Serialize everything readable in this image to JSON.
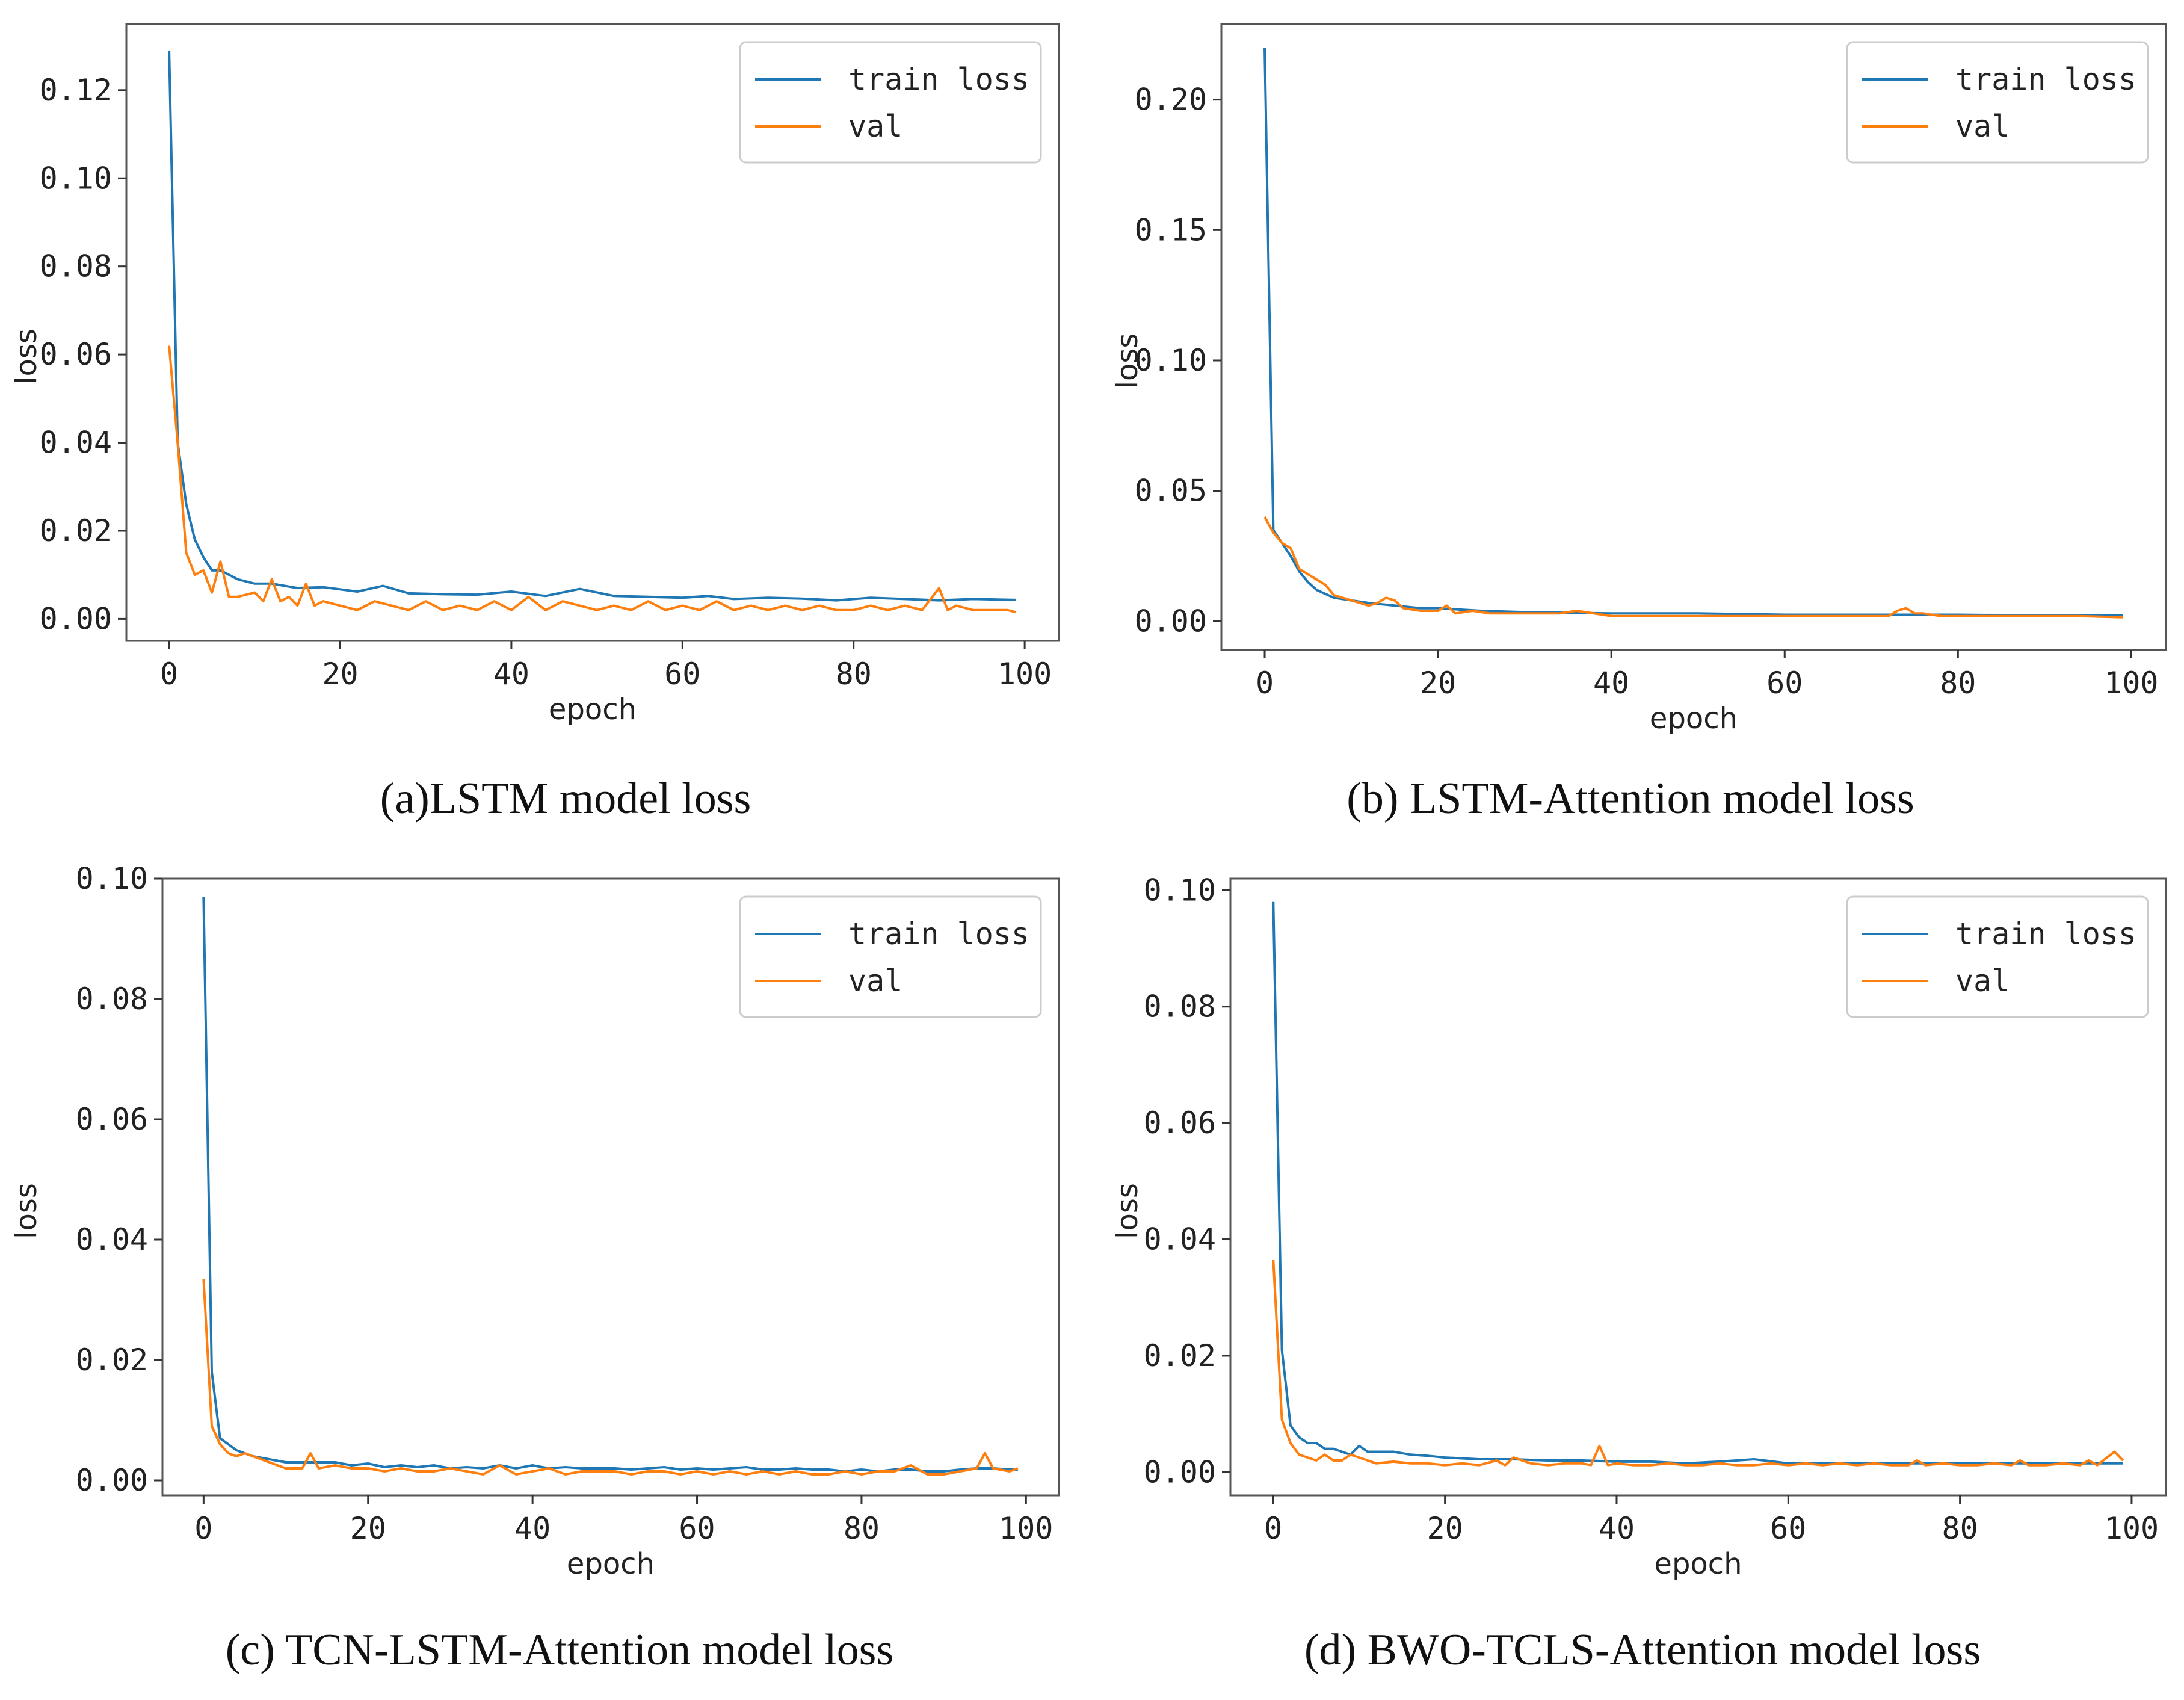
{
  "figure": {
    "colors": {
      "train": "#1f77b4",
      "val": "#ff7f0e",
      "frame": "#555555",
      "text": "#222222"
    }
  },
  "chart_data": [
    {
      "type": "line",
      "caption": "(a)LSTM model loss",
      "xlabel": "epoch",
      "ylabel": "loss",
      "xlim": [
        -5,
        104
      ],
      "ylim": [
        -0.005,
        0.135
      ],
      "xticks": [
        0,
        20,
        40,
        60,
        80,
        100
      ],
      "yticks": [
        0.0,
        0.02,
        0.04,
        0.06,
        0.08,
        0.1,
        0.12
      ],
      "ytick_labels": [
        "0.00",
        "0.02",
        "0.04",
        "0.06",
        "0.08",
        "0.10",
        "0.12"
      ],
      "legend": [
        "train loss",
        "val"
      ],
      "legend_position": "top-right",
      "series": [
        {
          "name": "train loss",
          "x": [
            0,
            1,
            2,
            3,
            4,
            5,
            6,
            8,
            10,
            12,
            15,
            18,
            22,
            25,
            28,
            32,
            36,
            40,
            44,
            48,
            52,
            56,
            60,
            63,
            66,
            70,
            74,
            78,
            82,
            86,
            90,
            94,
            99
          ],
          "y": [
            0.129,
            0.04,
            0.026,
            0.018,
            0.014,
            0.011,
            0.011,
            0.009,
            0.008,
            0.008,
            0.007,
            0.0072,
            0.0062,
            0.0075,
            0.0058,
            0.0056,
            0.0055,
            0.0062,
            0.0052,
            0.0068,
            0.0052,
            0.005,
            0.0048,
            0.0052,
            0.0045,
            0.0048,
            0.0046,
            0.0042,
            0.0048,
            0.0045,
            0.0042,
            0.0045,
            0.0043
          ]
        },
        {
          "name": "val",
          "x": [
            0,
            1,
            2,
            3,
            4,
            5,
            6,
            7,
            8,
            10,
            11,
            12,
            13,
            14,
            15,
            16,
            17,
            18,
            20,
            22,
            24,
            26,
            28,
            30,
            32,
            34,
            36,
            38,
            40,
            42,
            44,
            46,
            48,
            50,
            52,
            54,
            56,
            58,
            60,
            62,
            64,
            66,
            68,
            70,
            72,
            74,
            76,
            78,
            80,
            82,
            84,
            86,
            88,
            90,
            91,
            92,
            94,
            96,
            98,
            99
          ],
          "y": [
            0.062,
            0.04,
            0.015,
            0.01,
            0.011,
            0.006,
            0.013,
            0.005,
            0.005,
            0.006,
            0.004,
            0.009,
            0.004,
            0.005,
            0.003,
            0.008,
            0.003,
            0.004,
            0.003,
            0.002,
            0.004,
            0.003,
            0.002,
            0.004,
            0.002,
            0.003,
            0.002,
            0.004,
            0.002,
            0.005,
            0.002,
            0.004,
            0.003,
            0.002,
            0.003,
            0.002,
            0.004,
            0.002,
            0.003,
            0.002,
            0.004,
            0.002,
            0.003,
            0.002,
            0.003,
            0.002,
            0.003,
            0.002,
            0.002,
            0.003,
            0.002,
            0.003,
            0.002,
            0.007,
            0.002,
            0.003,
            0.002,
            0.002,
            0.002,
            0.0015
          ]
        }
      ]
    },
    {
      "type": "line",
      "caption": "(b) LSTM-Attention model loss",
      "xlabel": "epoch",
      "ylabel": "loss",
      "xlim": [
        -5,
        104
      ],
      "ylim": [
        -0.011,
        0.229
      ],
      "xticks": [
        0,
        20,
        40,
        60,
        80,
        100
      ],
      "yticks": [
        0.0,
        0.05,
        0.1,
        0.15,
        0.2
      ],
      "ytick_labels": [
        "0.00",
        "0.05",
        "0.10",
        "0.15",
        "0.20"
      ],
      "legend": [
        "train loss",
        "val"
      ],
      "legend_position": "top-right",
      "series": [
        {
          "name": "train loss",
          "x": [
            0,
            1,
            2,
            3,
            4,
            5,
            6,
            8,
            10,
            12,
            15,
            18,
            20,
            25,
            30,
            40,
            50,
            60,
            70,
            80,
            90,
            99
          ],
          "y": [
            0.22,
            0.035,
            0.03,
            0.025,
            0.019,
            0.015,
            0.012,
            0.009,
            0.008,
            0.007,
            0.006,
            0.005,
            0.005,
            0.004,
            0.0035,
            0.003,
            0.003,
            0.0025,
            0.0025,
            0.0025,
            0.0022,
            0.0022
          ]
        },
        {
          "name": "val",
          "x": [
            0,
            1,
            2,
            3,
            4,
            5,
            6,
            7,
            8,
            10,
            12,
            13,
            14,
            15,
            16,
            18,
            20,
            21,
            22,
            24,
            26,
            30,
            34,
            36,
            40,
            44,
            48,
            50,
            54,
            58,
            62,
            66,
            70,
            72,
            73,
            74,
            75,
            76,
            78,
            82,
            86,
            90,
            94,
            99
          ],
          "y": [
            0.04,
            0.034,
            0.03,
            0.028,
            0.02,
            0.018,
            0.016,
            0.014,
            0.01,
            0.008,
            0.006,
            0.007,
            0.009,
            0.008,
            0.005,
            0.004,
            0.004,
            0.006,
            0.003,
            0.004,
            0.003,
            0.003,
            0.003,
            0.004,
            0.002,
            0.002,
            0.002,
            0.002,
            0.002,
            0.002,
            0.002,
            0.002,
            0.002,
            0.002,
            0.004,
            0.005,
            0.003,
            0.003,
            0.002,
            0.002,
            0.002,
            0.002,
            0.002,
            0.0015
          ]
        }
      ]
    },
    {
      "type": "line",
      "caption": "(c) TCN-LSTM-Attention model loss",
      "xlabel": "epoch",
      "ylabel": "loss",
      "xlim": [
        -5,
        104
      ],
      "ylim": [
        -0.0025,
        0.1
      ],
      "xticks": [
        0,
        20,
        40,
        60,
        80,
        100
      ],
      "yticks": [
        0.0,
        0.02,
        0.04,
        0.06,
        0.08,
        0.1
      ],
      "ytick_labels": [
        "0.00",
        "0.02",
        "0.04",
        "0.06",
        "0.08",
        "0.10"
      ],
      "legend": [
        "train loss",
        "val"
      ],
      "legend_position": "top-right",
      "series": [
        {
          "name": "train loss",
          "x": [
            0,
            1,
            2,
            3,
            4,
            5,
            6,
            8,
            10,
            12,
            14,
            16,
            18,
            20,
            22,
            24,
            26,
            28,
            30,
            32,
            34,
            36,
            38,
            40,
            42,
            44,
            46,
            48,
            50,
            52,
            54,
            56,
            58,
            60,
            62,
            64,
            66,
            68,
            70,
            72,
            74,
            76,
            78,
            80,
            82,
            84,
            86,
            88,
            90,
            92,
            94,
            96,
            98,
            99
          ],
          "y": [
            0.097,
            0.018,
            0.007,
            0.006,
            0.005,
            0.0045,
            0.004,
            0.0035,
            0.003,
            0.003,
            0.003,
            0.003,
            0.0025,
            0.0028,
            0.0022,
            0.0025,
            0.0022,
            0.0025,
            0.002,
            0.0022,
            0.002,
            0.0025,
            0.002,
            0.0025,
            0.002,
            0.0022,
            0.002,
            0.002,
            0.002,
            0.0018,
            0.002,
            0.0022,
            0.0018,
            0.002,
            0.0018,
            0.002,
            0.0022,
            0.0018,
            0.0018,
            0.002,
            0.0018,
            0.0018,
            0.0015,
            0.0018,
            0.0015,
            0.0018,
            0.0018,
            0.0015,
            0.0015,
            0.0018,
            0.002,
            0.002,
            0.0018,
            0.0018
          ]
        },
        {
          "name": "val",
          "x": [
            0,
            1,
            2,
            3,
            4,
            5,
            6,
            8,
            10,
            12,
            13,
            14,
            16,
            18,
            20,
            22,
            24,
            26,
            28,
            30,
            32,
            34,
            36,
            38,
            40,
            42,
            44,
            46,
            48,
            50,
            52,
            54,
            56,
            58,
            60,
            62,
            64,
            66,
            68,
            70,
            72,
            74,
            76,
            78,
            80,
            82,
            84,
            86,
            88,
            90,
            92,
            94,
            95,
            96,
            98,
            99
          ],
          "y": [
            0.0335,
            0.009,
            0.006,
            0.0045,
            0.004,
            0.0045,
            0.004,
            0.003,
            0.002,
            0.002,
            0.0045,
            0.002,
            0.0025,
            0.002,
            0.002,
            0.0015,
            0.002,
            0.0015,
            0.0015,
            0.002,
            0.0015,
            0.001,
            0.0025,
            0.001,
            0.0015,
            0.002,
            0.001,
            0.0015,
            0.0015,
            0.0015,
            0.001,
            0.0015,
            0.0015,
            0.001,
            0.0015,
            0.001,
            0.0015,
            0.001,
            0.0015,
            0.001,
            0.0015,
            0.001,
            0.001,
            0.0015,
            0.001,
            0.0015,
            0.0015,
            0.0025,
            0.001,
            0.001,
            0.0015,
            0.002,
            0.0045,
            0.002,
            0.0015,
            0.002
          ]
        }
      ]
    },
    {
      "type": "line",
      "caption": "(d) BWO-TCLS-Attention model loss",
      "xlabel": "epoch",
      "ylabel": "loss",
      "xlim": [
        -5,
        104
      ],
      "ylim": [
        -0.004,
        0.102
      ],
      "xticks": [
        0,
        20,
        40,
        60,
        80,
        100
      ],
      "yticks": [
        0.0,
        0.02,
        0.04,
        0.06,
        0.08,
        0.1
      ],
      "ytick_labels": [
        "0.00",
        "0.02",
        "0.04",
        "0.06",
        "0.08",
        "0.10"
      ],
      "legend": [
        "train loss",
        "val"
      ],
      "legend_position": "top-right",
      "series": [
        {
          "name": "train loss",
          "x": [
            0,
            1,
            2,
            3,
            4,
            5,
            6,
            7,
            8,
            9,
            10,
            11,
            12,
            14,
            16,
            18,
            20,
            24,
            28,
            32,
            36,
            40,
            44,
            48,
            52,
            56,
            60,
            64,
            68,
            72,
            76,
            80,
            84,
            88,
            92,
            96,
            99
          ],
          "y": [
            0.098,
            0.021,
            0.008,
            0.006,
            0.005,
            0.005,
            0.004,
            0.004,
            0.0035,
            0.003,
            0.0045,
            0.0035,
            0.0035,
            0.0035,
            0.003,
            0.0028,
            0.0025,
            0.0022,
            0.0022,
            0.002,
            0.002,
            0.0018,
            0.0018,
            0.0015,
            0.0018,
            0.0022,
            0.0015,
            0.0015,
            0.0015,
            0.0015,
            0.0015,
            0.0015,
            0.0015,
            0.0015,
            0.0015,
            0.0015,
            0.0015
          ]
        },
        {
          "name": "val",
          "x": [
            0,
            1,
            2,
            3,
            4,
            5,
            6,
            7,
            8,
            9,
            10,
            11,
            12,
            14,
            16,
            18,
            20,
            22,
            24,
            26,
            27,
            28,
            30,
            32,
            34,
            36,
            37,
            38,
            39,
            40,
            42,
            44,
            46,
            48,
            50,
            52,
            54,
            56,
            58,
            60,
            62,
            64,
            66,
            68,
            70,
            72,
            74,
            75,
            76,
            78,
            80,
            82,
            84,
            86,
            87,
            88,
            90,
            92,
            94,
            95,
            96,
            98,
            99
          ],
          "y": [
            0.0365,
            0.009,
            0.005,
            0.003,
            0.0025,
            0.002,
            0.003,
            0.002,
            0.002,
            0.003,
            0.0025,
            0.002,
            0.0015,
            0.0018,
            0.0015,
            0.0015,
            0.0012,
            0.0015,
            0.0012,
            0.002,
            0.0012,
            0.0025,
            0.0015,
            0.0012,
            0.0015,
            0.0015,
            0.0012,
            0.0045,
            0.0012,
            0.0015,
            0.0012,
            0.0012,
            0.0015,
            0.0012,
            0.0012,
            0.0015,
            0.0012,
            0.0012,
            0.0015,
            0.0012,
            0.0015,
            0.0012,
            0.0015,
            0.0012,
            0.0015,
            0.0012,
            0.0012,
            0.002,
            0.0012,
            0.0015,
            0.0012,
            0.0012,
            0.0015,
            0.0012,
            0.002,
            0.0012,
            0.0012,
            0.0015,
            0.0012,
            0.002,
            0.0012,
            0.0035,
            0.002
          ]
        }
      ]
    }
  ]
}
